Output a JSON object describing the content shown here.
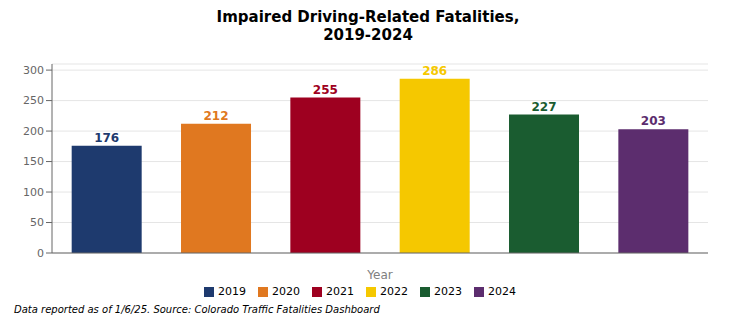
{
  "chart_data": {
    "type": "bar",
    "title": "Impaired Driving-Related Fatalities,\n2019-2024",
    "categories": [
      "2019",
      "2020",
      "2021",
      "2022",
      "2023",
      "2024"
    ],
    "values": [
      176,
      212,
      255,
      286,
      227,
      203
    ],
    "colors": [
      "#1e3a6e",
      "#e07820",
      "#9e0020",
      "#f5c800",
      "#1a5c30",
      "#5c2d6e"
    ],
    "xlabel": "Year",
    "ylim": [
      0,
      310
    ],
    "yticks": [
      0,
      50,
      100,
      150,
      200,
      250,
      300
    ],
    "grid": true,
    "data_labels": true,
    "legend": "bottom",
    "tick_labels": "y",
    "annotations": [
      "Data reported as of 1/6/25. Source: Colorado Traffic Fatalities Dashboard"
    ]
  }
}
